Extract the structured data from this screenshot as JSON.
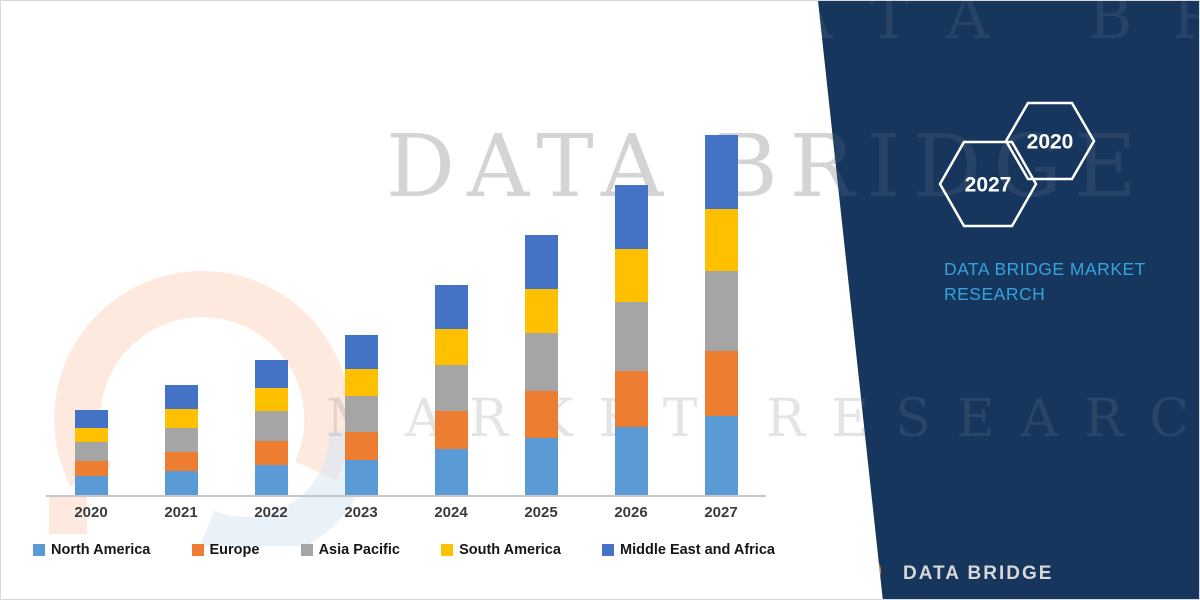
{
  "watermark": {
    "line1": "DATA BRIDGE",
    "line2": "MARKET RESEARCH"
  },
  "brand_panel": {
    "panel_color": "#17365D",
    "accent_text_color": "#35A2DB",
    "hexagons": [
      "2027",
      "2020"
    ],
    "brand_text": "DATA BRIDGE MARKET RESEARCH",
    "footer_logo_text": "DATA BRIDGE",
    "logo_orange": "#E87A2C",
    "logo_blue": "#2E75B6"
  },
  "chart_data": {
    "type": "bar",
    "stacked": true,
    "title": "",
    "xlabel": "",
    "ylabel": "",
    "grid": false,
    "legend_position": "bottom",
    "categories": [
      "2020",
      "2021",
      "2022",
      "2023",
      "2024",
      "2025",
      "2026",
      "2027"
    ],
    "series": [
      {
        "name": "North America",
        "color": "#5B9BD5",
        "values": [
          19,
          24,
          30,
          35,
          46,
          57,
          68,
          79
        ]
      },
      {
        "name": "Europe",
        "color": "#ED7D31",
        "values": [
          15,
          19,
          24,
          28,
          38,
          47,
          56,
          65
        ]
      },
      {
        "name": "Asia Pacific",
        "color": "#A5A5A5",
        "values": [
          19,
          24,
          30,
          36,
          46,
          58,
          69,
          80
        ]
      },
      {
        "name": "South America",
        "color": "#FFC000",
        "values": [
          14,
          19,
          23,
          27,
          36,
          44,
          53,
          62
        ]
      },
      {
        "name": "Middle East and Africa",
        "color": "#4472C4",
        "values": [
          18,
          24,
          28,
          34,
          44,
          54,
          64,
          74
        ]
      }
    ],
    "ylim": [
      0,
      400
    ],
    "units": "relative-index"
  }
}
